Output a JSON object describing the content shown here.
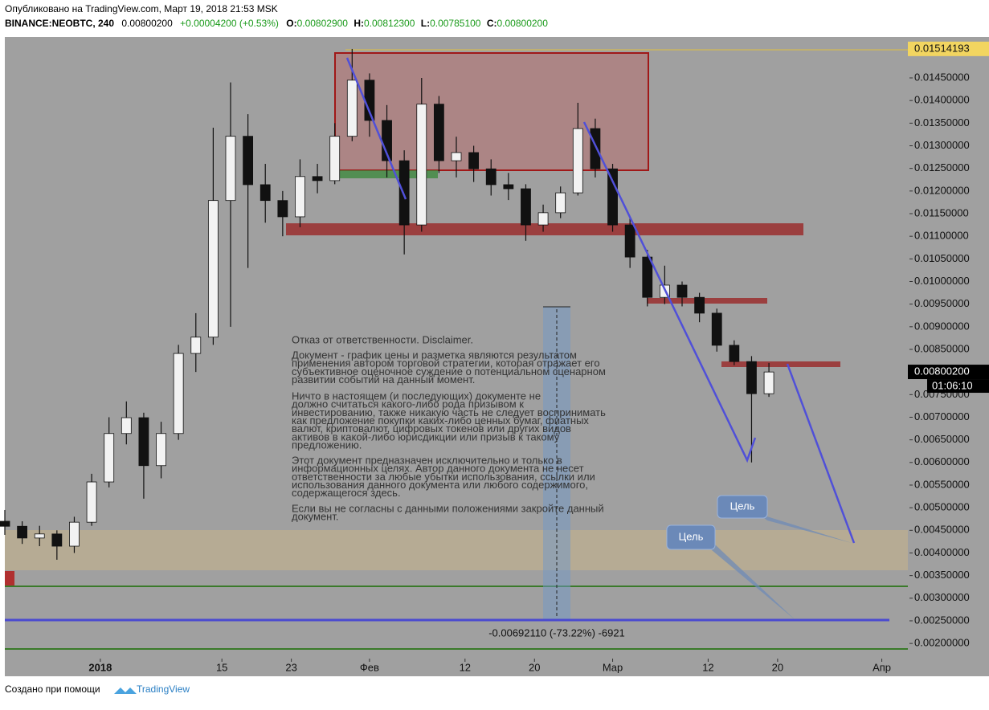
{
  "header": {
    "published": "Опубликовано на TradingView.com, Март 19, 2018 21:53 MSK",
    "symbol": "BINANCE:NEOBTC, 240",
    "last": "0.00800200",
    "change": "+0.00004200 (+0.53%)",
    "o_label": "O:",
    "o": "0.00802900",
    "h_label": "H:",
    "h": "0.00812300",
    "l_label": "L:",
    "l": "0.00785100",
    "c_label": "C:",
    "c": "0.00800200"
  },
  "footer": {
    "made_with": "Создано при помощи",
    "brand": "TradingView"
  },
  "chart_data": {
    "type": "candlestick",
    "up_color": "#f2f2f2",
    "down_color": "#111111",
    "background": "#a0a0a0",
    "x": [
      "2017-12-21",
      "2017-12-23",
      "2017-12-25",
      "2017-12-27",
      "2017-12-29",
      "2017-12-31",
      "2018-01-02",
      "2018-01-04",
      "2018-01-06",
      "2018-01-08",
      "2018-01-10",
      "2018-01-12",
      "2018-01-14",
      "2018-01-16",
      "2018-01-18",
      "2018-01-20",
      "2018-01-22",
      "2018-01-24",
      "2018-01-26",
      "2018-01-28",
      "2018-01-30",
      "2018-02-01",
      "2018-02-03",
      "2018-02-05",
      "2018-02-07",
      "2018-02-09",
      "2018-02-11",
      "2018-02-13",
      "2018-02-15",
      "2018-02-17",
      "2018-02-19",
      "2018-02-21",
      "2018-02-23",
      "2018-02-25",
      "2018-02-27",
      "2018-03-01",
      "2018-03-03",
      "2018-03-05",
      "2018-03-07",
      "2018-03-09",
      "2018-03-11",
      "2018-03-13",
      "2018-03-15",
      "2018-03-17",
      "2018-03-19"
    ],
    "open": [
      0.0047,
      0.00459,
      0.00433,
      0.00442,
      0.00415,
      0.00468,
      0.00557,
      0.00664,
      0.00699,
      0.00593,
      0.00664,
      0.00841,
      0.00877,
      0.01179,
      0.01321,
      0.01214,
      0.01179,
      0.01143,
      0.01232,
      0.01223,
      0.01321,
      0.01445,
      0.01356,
      0.01267,
      0.01125,
      0.01392,
      0.01267,
      0.01285,
      0.01249,
      0.01214,
      0.01205,
      0.01125,
      0.01152,
      0.01196,
      0.01338,
      0.01249,
      0.01125,
      0.01054,
      0.00965,
      0.00992,
      0.00965,
      0.0093,
      0.00859,
      0.00823,
      0.00752
    ],
    "high": [
      0.00495,
      0.0047,
      0.0046,
      0.0045,
      0.0048,
      0.00575,
      0.007,
      0.00735,
      0.0071,
      0.0069,
      0.0086,
      0.0093,
      0.0134,
      0.0144,
      0.0137,
      0.0126,
      0.012,
      0.0127,
      0.0126,
      0.0135,
      0.01514,
      0.0146,
      0.0139,
      0.0129,
      0.0145,
      0.0141,
      0.0132,
      0.013,
      0.0127,
      0.0124,
      0.01215,
      0.0117,
      0.0121,
      0.01395,
      0.0136,
      0.0126,
      0.0114,
      0.0107,
      0.01035,
      0.01,
      0.00975,
      0.0094,
      0.0087,
      0.00835,
      0.0082
    ],
    "low": [
      0.0044,
      0.0042,
      0.00415,
      0.00385,
      0.004,
      0.0046,
      0.00545,
      0.0064,
      0.0052,
      0.00565,
      0.0065,
      0.008,
      0.0086,
      0.009,
      0.0103,
      0.0113,
      0.011,
      0.0112,
      0.01195,
      0.01215,
      0.0131,
      0.0132,
      0.0123,
      0.0106,
      0.0111,
      0.0124,
      0.0123,
      0.0122,
      0.0119,
      0.0118,
      0.0109,
      0.0111,
      0.0114,
      0.0119,
      0.0123,
      0.0111,
      0.0103,
      0.00945,
      0.0095,
      0.00945,
      0.0091,
      0.00845,
      0.00815,
      0.006,
      0.00745
    ],
    "close": [
      0.00459,
      0.00433,
      0.00442,
      0.00415,
      0.00468,
      0.00557,
      0.00664,
      0.00699,
      0.00593,
      0.00664,
      0.00841,
      0.00877,
      0.01179,
      0.01321,
      0.01214,
      0.01179,
      0.01143,
      0.01232,
      0.01223,
      0.01321,
      0.01445,
      0.01356,
      0.01267,
      0.01125,
      0.01392,
      0.01267,
      0.01285,
      0.01249,
      0.01214,
      0.01205,
      0.01125,
      0.01152,
      0.01196,
      0.01338,
      0.01249,
      0.01125,
      0.01054,
      0.00965,
      0.00992,
      0.00965,
      0.0093,
      0.00859,
      0.00823,
      0.00752,
      0.008
    ],
    "xlim": [
      "2017-12-21",
      "2018-04-04"
    ],
    "xticks": [
      {
        "value": "2018-01-01",
        "label": "2018"
      },
      {
        "value": "2018-01-15",
        "label": "15"
      },
      {
        "value": "2018-01-23",
        "label": "23"
      },
      {
        "value": "2018-02-01",
        "label": "Фев"
      },
      {
        "value": "2018-02-12",
        "label": "12"
      },
      {
        "value": "2018-02-20",
        "label": "20"
      },
      {
        "value": "2018-03-01",
        "label": "Мар"
      },
      {
        "value": "2018-03-12",
        "label": "12"
      },
      {
        "value": "2018-03-20",
        "label": "20"
      },
      {
        "value": "2018-04-01",
        "label": "Апр"
      }
    ],
    "ylim": [
      0.00131,
      0.01537
    ],
    "yticks": [
      {
        "value": 0.002,
        "label": "0.00200000"
      },
      {
        "value": 0.0025,
        "label": "0.00250000"
      },
      {
        "value": 0.003,
        "label": "0.00300000"
      },
      {
        "value": 0.0035,
        "label": "0.00350000"
      },
      {
        "value": 0.004,
        "label": "0.00400000"
      },
      {
        "value": 0.0045,
        "label": "0.00450000"
      },
      {
        "value": 0.005,
        "label": "0.00500000"
      },
      {
        "value": 0.0055,
        "label": "0.00550000"
      },
      {
        "value": 0.006,
        "label": "0.00600000"
      },
      {
        "value": 0.0065,
        "label": "0.00650000"
      },
      {
        "value": 0.007,
        "label": "0.00700000"
      },
      {
        "value": 0.0075,
        "label": "0.00750000"
      },
      {
        "value": 0.0085,
        "label": "0.00850000"
      },
      {
        "value": 0.009,
        "label": "0.00900000"
      },
      {
        "value": 0.0095,
        "label": "0.00950000"
      },
      {
        "value": 0.01,
        "label": "0.01000000"
      },
      {
        "value": 0.0105,
        "label": "0.01050000"
      },
      {
        "value": 0.011,
        "label": "0.01100000"
      },
      {
        "value": 0.0115,
        "label": "0.01150000"
      },
      {
        "value": 0.012,
        "label": "0.01200000"
      },
      {
        "value": 0.0125,
        "label": "0.01250000"
      },
      {
        "value": 0.013,
        "label": "0.01300000"
      },
      {
        "value": 0.0135,
        "label": "0.01350000"
      },
      {
        "value": 0.014,
        "label": "0.01400000"
      },
      {
        "value": 0.0145,
        "label": "0.01450000"
      }
    ],
    "price_marks": [
      {
        "value": 0.01514193,
        "label": "0.01514193"
      },
      {
        "value": 0.008002,
        "label": "0.00800200"
      }
    ],
    "countdown": "01:06:10",
    "measure": "-0.00692110 (-73.22%) -6921",
    "targets": [
      "Цель",
      "Цель"
    ],
    "disclaimer": [
      [
        "Отказ от ответственности. Disclaimer."
      ],
      [
        "Документ - график цены и разметка являются результатом",
        "применения автором торговой стратегии, которая отражает его",
        "субъективное оценочное суждение о потенциальном сценарном",
        "развитии событий на данный момент."
      ],
      [
        "Ничто в настоящем (и последующих) документе не",
        "должно считаться какого-либо рода призывом к",
        "инвестированию, также никакую часть не следует воспринимать",
        "как предложение покупки каких-либо ценных бумаг, фиатных",
        "валют, криптовалют, цифровых токенов или других видов",
        "активов в какой-либо юрисдикции или призыв к такому",
        "предложению."
      ],
      [
        "Этот документ предназначен исключительно и только в",
        "информационных целях. Автор данного документа не несет",
        "ответственности за любые убытки использования, ссылки или",
        "использования данного документа или любого содержимого,",
        "содержащегося здесь."
      ],
      [
        "Если вы не согласны с данными положениями закройте данный",
        "документ."
      ]
    ]
  }
}
